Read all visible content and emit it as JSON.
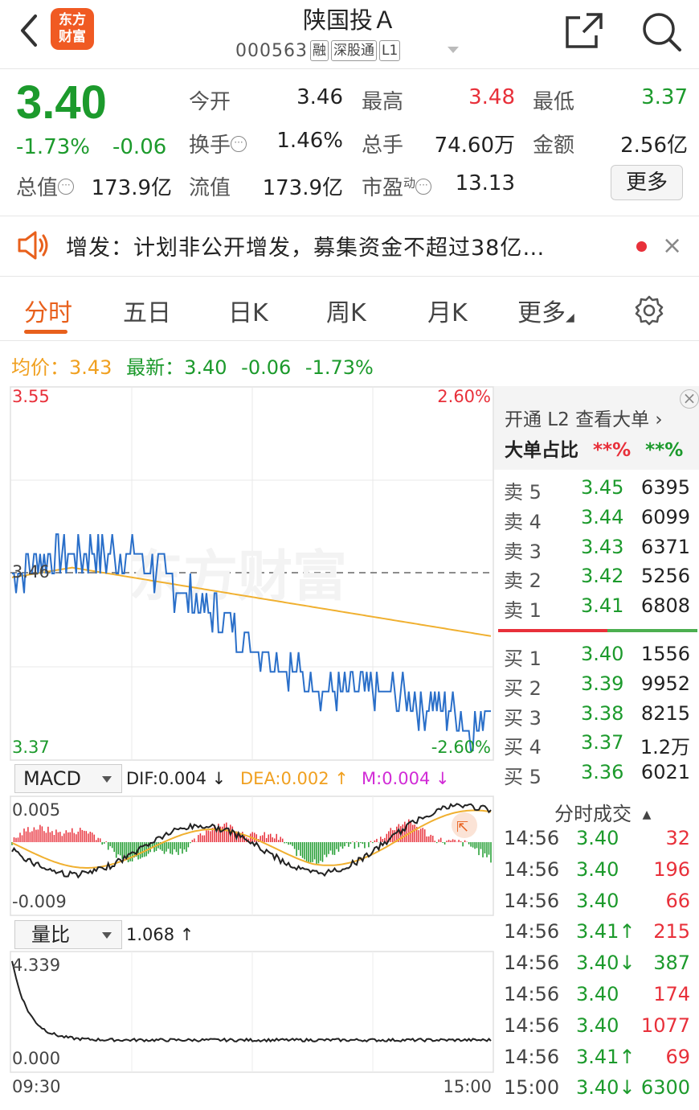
{
  "header": {
    "logo_line1": "东方",
    "logo_line2": "财富",
    "title": "陕国投Ａ",
    "code": "000563",
    "tags": [
      "融",
      "深股通",
      "L1"
    ]
  },
  "quote": {
    "price": "3.40",
    "change_pct": "-1.73%",
    "change": "-0.06",
    "stats": {
      "open_label": "今开",
      "open": "3.46",
      "high_label": "最高",
      "high": "3.48",
      "low_label": "最低",
      "low": "3.37",
      "turnover_label": "换手",
      "turnover": "1.46%",
      "volume_label": "总手",
      "volume": "74.60万",
      "amount_label": "金额",
      "amount": "2.56亿",
      "mktcap_label": "总值",
      "mktcap": "173.9亿",
      "float_label": "流值",
      "float_cap": "173.9亿",
      "pe_label": "市盈",
      "pe_sup": "动",
      "pe": "13.13"
    },
    "more_button": "更多"
  },
  "notice": {
    "text": "增发：计划非公开增发，募集资金不超过38亿…"
  },
  "tabs": [
    "分时",
    "五日",
    "日K",
    "周K",
    "月K",
    "更多"
  ],
  "active_tab": "分时",
  "legend": {
    "avg_label": "均价：",
    "avg": "3.43",
    "latest_label": "最新：",
    "latest": "3.40",
    "latest_chg": "-0.06",
    "latest_pct": "-1.73%"
  },
  "chart_axis": {
    "y_top": "3.55",
    "y_mid": "3.46",
    "y_bottom": "3.37",
    "pct_top": "2.60%",
    "pct_bottom": "-2.60%",
    "watermark": "东方财富"
  },
  "macd": {
    "selector": "MACD",
    "dif": "DIF:0.004 ↓",
    "dea": "DEA:0.002 ↑",
    "m": "M:0.004 ↓",
    "y_top": "0.005",
    "y_bottom": "-0.009"
  },
  "volume_ratio": {
    "selector": "量比",
    "value": "1.068 ↑",
    "y_top": "4.339",
    "y_bottom": "0.000",
    "x_start": "09:30",
    "x_end": "15:00"
  },
  "colors": {
    "price_line": "#2a6fc9",
    "avg_line": "#f0b030",
    "up": "#e8303a",
    "down": "#1c9a2c"
  },
  "right_panel": {
    "l2_link": "开通 L2 查看大单",
    "big_order_label": "大单占比",
    "big_order_red": "**%",
    "big_order_green": "**%",
    "asks": [
      {
        "name": "卖 5",
        "price": "3.45",
        "vol": "6395"
      },
      {
        "name": "卖 4",
        "price": "3.44",
        "vol": "6099"
      },
      {
        "name": "卖 3",
        "price": "3.43",
        "vol": "6371"
      },
      {
        "name": "卖 2",
        "price": "3.42",
        "vol": "5256"
      },
      {
        "name": "卖 1",
        "price": "3.41",
        "vol": "6808"
      }
    ],
    "bids": [
      {
        "name": "买 1",
        "price": "3.40",
        "vol": "1556"
      },
      {
        "name": "买 2",
        "price": "3.39",
        "vol": "9952"
      },
      {
        "name": "买 3",
        "price": "3.38",
        "vol": "8215"
      },
      {
        "name": "买 4",
        "price": "3.37",
        "vol": "1.2万"
      },
      {
        "name": "买 5",
        "price": "3.36",
        "vol": "6021"
      }
    ],
    "ticks_title": "分时成交",
    "ticks": [
      {
        "time": "14:56",
        "price": "3.40",
        "vol": "32"
      },
      {
        "time": "14:56",
        "price": "3.40",
        "vol": "196"
      },
      {
        "time": "14:56",
        "price": "3.40",
        "vol": "66"
      },
      {
        "time": "14:56",
        "price": "3.41↑",
        "vol": "215"
      },
      {
        "time": "14:56",
        "price": "3.40↓",
        "vol": "387"
      },
      {
        "time": "14:56",
        "price": "3.40",
        "vol": "174"
      },
      {
        "time": "14:56",
        "price": "3.40",
        "vol": "1077"
      },
      {
        "time": "14:56",
        "price": "3.41↑",
        "vol": "69"
      },
      {
        "time": "15:00",
        "price": "3.40↓",
        "vol": "6300"
      }
    ]
  }
}
